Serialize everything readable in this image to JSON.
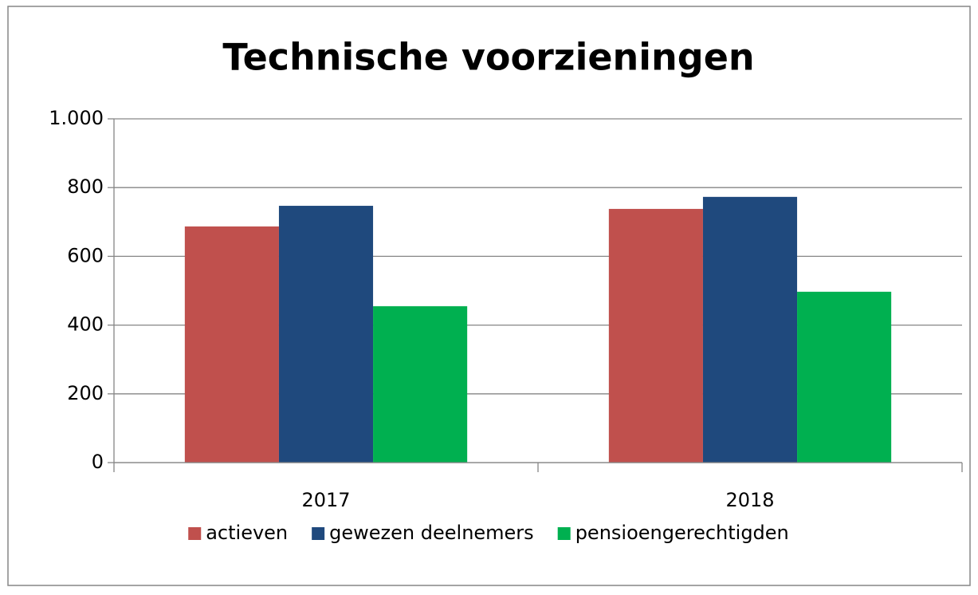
{
  "chart_data": {
    "type": "bar",
    "title": "Technische voorzieningen",
    "categories": [
      "2017",
      "2018"
    ],
    "series": [
      {
        "name": "actieven",
        "color": "#c0504d",
        "values": [
          687,
          738
        ]
      },
      {
        "name": "gewezen deelnemers",
        "color": "#1f497d",
        "values": [
          747,
          773
        ]
      },
      {
        "name": "pensioengerechtigden",
        "color": "#00b050",
        "values": [
          455,
          497
        ]
      }
    ],
    "ylim": [
      0,
      1000
    ],
    "yticks": [
      0,
      200,
      400,
      600,
      800,
      {
        "value": 1000,
        "label": "1.000"
      }
    ],
    "grid": true,
    "legend": "bottom"
  }
}
